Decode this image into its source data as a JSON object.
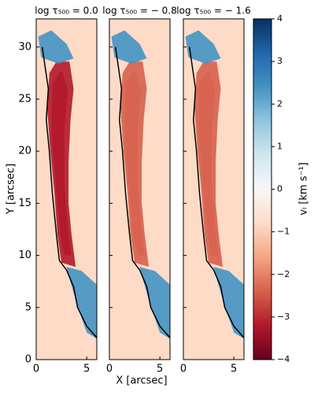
{
  "chart_data": {
    "type": "heatmap",
    "panels": [
      {
        "title": "log τ₅₀₀ = 0.0"
      },
      {
        "title": "log τ₅₀₀ = − 0.8"
      },
      {
        "title": "log τ₅₀₀ = − 1.6"
      }
    ],
    "xlabel": "X [arcsec]",
    "ylabel": "Y [arcsec]",
    "xlim": [
      0,
      6
    ],
    "xticks": [
      0,
      5
    ],
    "ylim": [
      0,
      32.7
    ],
    "yticks": [
      0,
      5,
      10,
      15,
      20,
      25,
      30
    ],
    "colorbar": {
      "label": "vₗ [km s⁻¹]",
      "lim": [
        -4,
        4
      ],
      "ticks": [
        {
          "value": -4,
          "label": "−4"
        },
        {
          "value": -3,
          "label": "−3"
        },
        {
          "value": -2,
          "label": "−2"
        },
        {
          "value": -1,
          "label": "−1"
        },
        0,
        1,
        2,
        3,
        4
      ],
      "colormap": [
        "#67001f",
        "#b2182b",
        "#d6604d",
        "#f4a582",
        "#fddbc7",
        "#f7f7f7",
        "#d1e5f0",
        "#92c5de",
        "#4393c3",
        "#2166ac",
        "#053061"
      ]
    }
  }
}
